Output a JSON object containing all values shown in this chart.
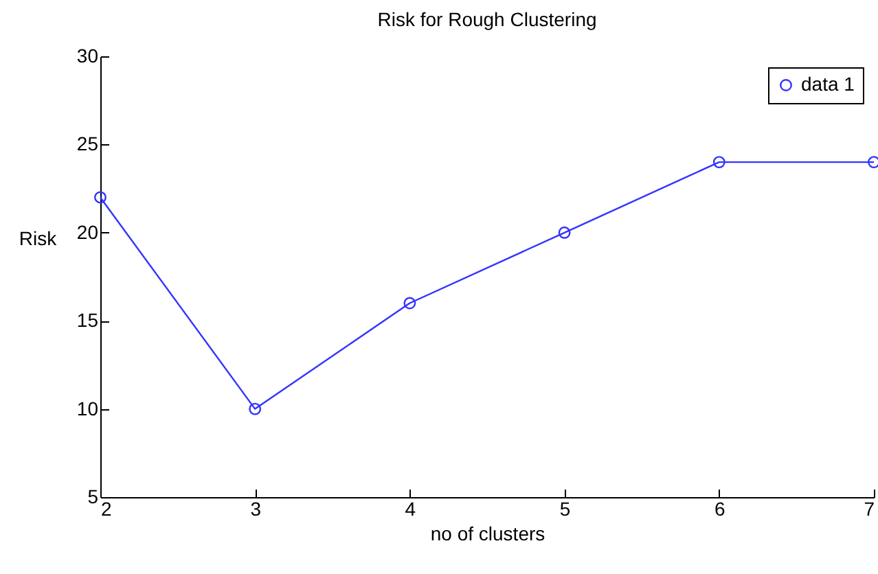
{
  "chart_data": {
    "type": "line",
    "title": "Risk for Rough Clustering",
    "xlabel": "no of clusters",
    "ylabel": "Risk",
    "x": [
      2,
      3,
      4,
      5,
      6,
      7
    ],
    "series": [
      {
        "name": "data 1",
        "color": "#3333ff",
        "values": [
          22,
          10,
          16,
          20,
          24,
          24
        ]
      }
    ],
    "xlim": [
      2,
      7
    ],
    "xticks": [
      2,
      3,
      4,
      5,
      6,
      7
    ],
    "ylim": [
      5,
      30
    ],
    "yticks": [
      5,
      10,
      15,
      20,
      25,
      30
    ],
    "legend": "top right",
    "marker": "circle",
    "line_style": "solid",
    "grid": false
  }
}
